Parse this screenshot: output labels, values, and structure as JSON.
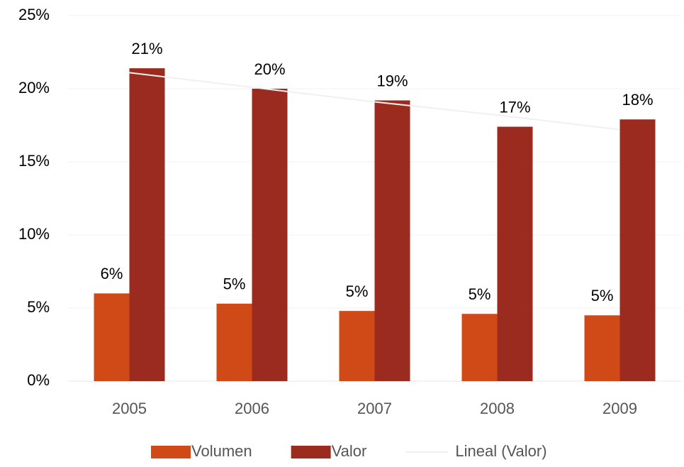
{
  "chart_data": {
    "type": "bar",
    "categories": [
      "2005",
      "2006",
      "2007",
      "2008",
      "2009"
    ],
    "series": [
      {
        "name": "Volumen",
        "color": "#d04a18",
        "values": [
          6.0,
          5.3,
          4.8,
          4.6,
          4.5
        ],
        "value_labels": [
          "6%",
          "5%",
          "5%",
          "5%",
          "5%"
        ]
      },
      {
        "name": "Valor",
        "color": "#9c2b1f",
        "values": [
          21.4,
          20.0,
          19.2,
          17.4,
          17.9
        ],
        "value_labels": [
          "21%",
          "20%",
          "19%",
          "17%",
          "18%"
        ]
      },
      {
        "name": "Lineal (Valor)",
        "type": "line",
        "color": "#f0f0f0",
        "values": [
          21.1,
          20.1,
          19.1,
          18.2,
          17.2
        ]
      }
    ],
    "ylim": [
      0,
      25
    ],
    "yticks": [
      {
        "value": 0,
        "label": "0%"
      },
      {
        "value": 5,
        "label": "5%"
      },
      {
        "value": 10,
        "label": "10%"
      },
      {
        "value": 15,
        "label": "15%"
      },
      {
        "value": 20,
        "label": "20%"
      },
      {
        "value": 25,
        "label": "25%"
      }
    ],
    "grid": true,
    "legend": "bottom"
  }
}
